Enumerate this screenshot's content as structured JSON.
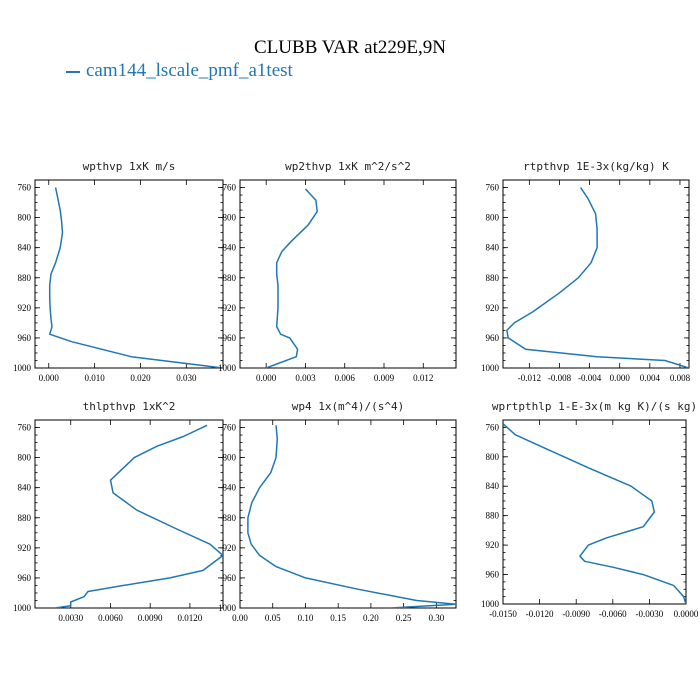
{
  "title": "CLUBB VAR at229E,9N",
  "legend": {
    "label": "cam144_lscale_pmf_a1test",
    "color": "#1f77b4"
  },
  "chart_data": [
    {
      "type": "line",
      "title": "wpthvp  1xK m/s",
      "ylim": [
        1000,
        750
      ],
      "yticks": [
        760,
        800,
        840,
        880,
        920,
        960,
        1000
      ],
      "xlim": [
        -0.003,
        0.038
      ],
      "xticks": [
        0.0,
        0.01,
        0.02,
        0.03
      ],
      "xticklabels": [
        "0.000",
        "0.010",
        "0.020",
        "0.030"
      ],
      "series": [
        {
          "x": [
            0.0015,
            0.002,
            0.0025,
            0.0028,
            0.003,
            0.0025,
            0.0015,
            0.0005,
            0.0002,
            0.0002,
            0.0003,
            0.0005,
            0.0007,
            0.0002,
            0.005,
            0.018,
            0.038
          ],
          "y": [
            760,
            775,
            790,
            805,
            820,
            840,
            860,
            875,
            890,
            905,
            920,
            935,
            945,
            955,
            965,
            985,
            1000
          ]
        }
      ]
    },
    {
      "type": "line",
      "title": "wp2thvp  1xK m^2/s^2",
      "ylim": [
        1000,
        750
      ],
      "yticks": [
        760,
        800,
        840,
        880,
        920,
        960,
        1000
      ],
      "xlim": [
        -0.002,
        0.0145
      ],
      "xticks": [
        0.0,
        0.003,
        0.006,
        0.009,
        0.012
      ],
      "xticklabels": [
        "0.000",
        "0.003",
        "0.006",
        "0.009",
        "0.012"
      ],
      "series": [
        {
          "x": [
            0.003,
            0.0038,
            0.0039,
            0.0032,
            0.002,
            0.0012,
            0.0008,
            0.0008,
            0.0009,
            0.0009,
            0.0008,
            0.0011,
            0.0018,
            0.0024,
            0.0023,
            0.0
          ],
          "y": [
            762,
            777,
            792,
            810,
            830,
            845,
            860,
            875,
            890,
            920,
            945,
            955,
            960,
            975,
            985,
            1000
          ]
        }
      ]
    },
    {
      "type": "line",
      "title": "rtpthvp  1E-3x(kg/kg) K",
      "ylim": [
        1000,
        750
      ],
      "yticks": [
        760,
        800,
        840,
        880,
        920,
        960,
        1000
      ],
      "xlim": [
        -0.0155,
        0.0092
      ],
      "xticks": [
        -0.012,
        -0.008,
        -0.004,
        0.0,
        0.004,
        0.008
      ],
      "xticklabels": [
        "-0.012",
        "-0.008",
        "-0.004",
        "0.000",
        "0.004",
        "0.008"
      ],
      "series": [
        {
          "x": [
            -0.0052,
            -0.0042,
            -0.0032,
            -0.003,
            -0.003,
            -0.0038,
            -0.0055,
            -0.008,
            -0.0115,
            -0.014,
            -0.015,
            -0.0148,
            -0.0125,
            -0.003,
            0.006,
            0.0092
          ],
          "y": [
            760,
            775,
            795,
            815,
            840,
            860,
            880,
            900,
            925,
            940,
            950,
            960,
            975,
            985,
            990,
            1000
          ]
        }
      ]
    },
    {
      "type": "line",
      "title": "thlpthvp  1xK^2",
      "ylim": [
        1000,
        750
      ],
      "yticks": [
        760,
        800,
        840,
        880,
        920,
        960,
        1000
      ],
      "xlim": [
        0.0003,
        0.0145
      ],
      "xticks": [
        0.003,
        0.006,
        0.009,
        0.012
      ],
      "xticklabels": [
        "0.0030",
        "0.0060",
        "0.0090",
        "0.0120"
      ],
      "series": [
        {
          "x": [
            0.0133,
            0.0115,
            0.0095,
            0.0078,
            0.006,
            0.0062,
            0.008,
            0.011,
            0.0135,
            0.0145,
            0.013,
            0.0105,
            0.007,
            0.0043,
            0.004,
            0.003,
            0.003,
            0.0018
          ],
          "y": [
            757,
            772,
            785,
            800,
            830,
            847,
            870,
            895,
            915,
            930,
            950,
            960,
            970,
            978,
            985,
            992,
            997,
            1000
          ]
        }
      ]
    },
    {
      "type": "line",
      "title": "wp4  1x(m^4)/(s^4)",
      "ylim": [
        1000,
        750
      ],
      "yticks": [
        760,
        800,
        840,
        880,
        920,
        960,
        1000
      ],
      "xlim": [
        0.0,
        0.33
      ],
      "xticks": [
        0.0,
        0.05,
        0.1,
        0.15,
        0.2,
        0.25,
        0.3
      ],
      "xticklabels": [
        "0.00",
        "0.05",
        "0.10",
        "0.15",
        "0.20",
        "0.25",
        "0.30"
      ],
      "series": [
        {
          "x": [
            0.055,
            0.057,
            0.055,
            0.047,
            0.03,
            0.018,
            0.012,
            0.012,
            0.017,
            0.03,
            0.055,
            0.1,
            0.18,
            0.27,
            0.33,
            0.23
          ],
          "y": [
            757,
            775,
            800,
            820,
            840,
            860,
            880,
            900,
            915,
            930,
            945,
            960,
            975,
            990,
            995,
            1000
          ]
        }
      ]
    },
    {
      "type": "line",
      "title": "wprtpthlp  1-E-3x(m kg K)/(s kg)",
      "ylim": [
        1000,
        750
      ],
      "yticks": [
        760,
        800,
        840,
        880,
        920,
        960,
        1000
      ],
      "xlim": [
        -0.015,
        0.0
      ],
      "xticks": [
        -0.015,
        -0.012,
        -0.009,
        -0.006,
        -0.003,
        0.0
      ],
      "xticklabels": [
        "-0.0150",
        "-0.0120",
        "-0.0090",
        "-0.0060",
        "-0.0030",
        "0.0000"
      ],
      "series": [
        {
          "x": [
            -0.015,
            -0.014,
            -0.012,
            -0.01,
            -0.008,
            -0.0045,
            -0.0028,
            -0.0026,
            -0.0035,
            -0.0065,
            -0.008,
            -0.0087,
            -0.0083,
            -0.006,
            -0.0035,
            -0.001,
            -0.0002,
            0.0
          ],
          "y": [
            755,
            770,
            785,
            800,
            815,
            840,
            860,
            875,
            895,
            910,
            920,
            935,
            942,
            950,
            960,
            975,
            990,
            1000
          ]
        }
      ]
    }
  ]
}
